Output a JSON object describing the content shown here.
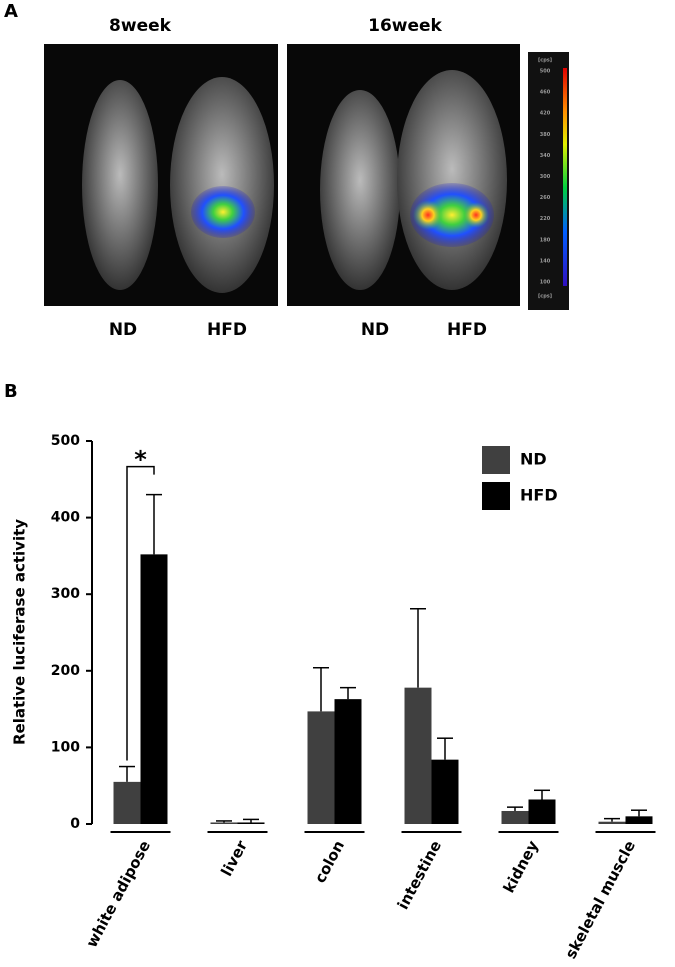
{
  "panel_a": {
    "label": "A",
    "time_labels": [
      "8week",
      "16week"
    ],
    "group_labels": [
      "ND",
      "HFD",
      "ND",
      "HFD"
    ],
    "colorbar": {
      "unit": "[cps]",
      "ticks": [
        500,
        460,
        420,
        380,
        340,
        300,
        260,
        220,
        180,
        140,
        100
      ]
    }
  },
  "chart_data": {
    "type": "bar",
    "panel_label": "B",
    "y_label": "Relative luciferase activity",
    "categories": [
      "white adipose",
      "liver",
      "colon",
      "intestine",
      "kidney",
      "skeletal muscle"
    ],
    "series": [
      {
        "name": "ND",
        "color": "#404040",
        "values": [
          55,
          2,
          147,
          178,
          17,
          3
        ],
        "errors": [
          20,
          2,
          57,
          103,
          5,
          4
        ]
      },
      {
        "name": "HFD",
        "color": "#000000",
        "values": [
          352,
          2,
          163,
          84,
          32,
          10
        ],
        "errors": [
          78,
          4,
          15,
          28,
          12,
          8
        ]
      }
    ],
    "annotation": "*",
    "ylim": [
      0,
      500
    ],
    "yticks": [
      0,
      100,
      200,
      300,
      400,
      500
    ],
    "legend": "upper right"
  }
}
